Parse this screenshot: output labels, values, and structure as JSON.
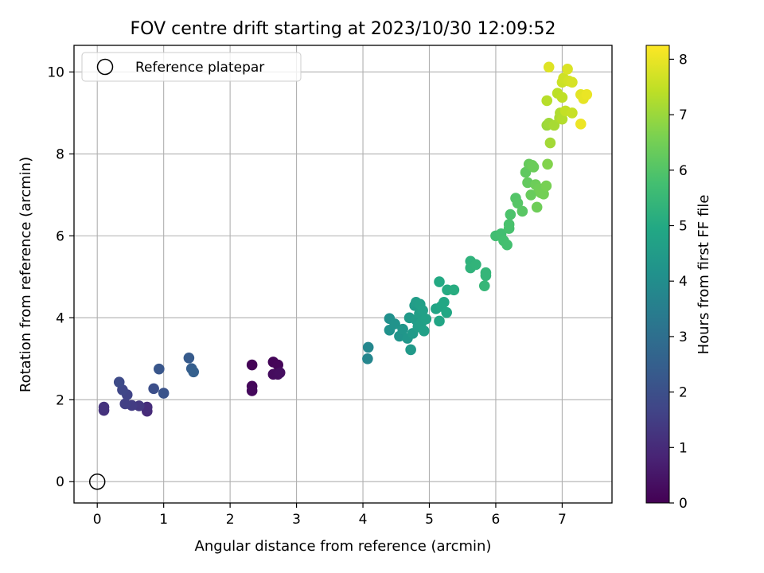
{
  "chart_data": {
    "type": "scatter",
    "title": "FOV centre drift starting at 2023/10/30 12:09:52",
    "xlabel": "Angular distance from reference (arcmin)",
    "ylabel": "Rotation from reference (arcmin)",
    "xlim": [
      -0.35,
      7.75
    ],
    "ylim": [
      -0.52,
      10.65
    ],
    "xticks": [
      "0",
      "1",
      "2",
      "3",
      "4",
      "5",
      "6",
      "7"
    ],
    "yticks": [
      "0",
      "2",
      "4",
      "6",
      "8",
      "10"
    ],
    "grid": true,
    "legend": {
      "position": "top-left",
      "entries": [
        "Reference platepar"
      ]
    },
    "reference_point": {
      "x": 0,
      "y": 0,
      "label": "Reference platepar"
    },
    "colorbar": {
      "label": "Hours from first FF file",
      "min": 0,
      "max": 8.25,
      "ticks": [
        "0",
        "1",
        "2",
        "3",
        "4",
        "5",
        "6",
        "7",
        "8"
      ],
      "colormap": "viridis"
    },
    "points": [
      {
        "x": 2.33,
        "y": 2.85,
        "t": 0.05
      },
      {
        "x": 2.65,
        "y": 2.92,
        "t": 0.1
      },
      {
        "x": 2.72,
        "y": 2.85,
        "t": 0.12
      },
      {
        "x": 2.33,
        "y": 2.33,
        "t": 0.15
      },
      {
        "x": 2.33,
        "y": 2.22,
        "t": 0.2
      },
      {
        "x": 2.65,
        "y": 2.62,
        "t": 0.25
      },
      {
        "x": 2.72,
        "y": 2.62,
        "t": 0.28
      },
      {
        "x": 2.75,
        "y": 2.66,
        "t": 0.3
      },
      {
        "x": 0.75,
        "y": 1.72,
        "t": 1.0
      },
      {
        "x": 0.75,
        "y": 1.82,
        "t": 1.05
      },
      {
        "x": 0.1,
        "y": 1.74,
        "t": 1.15
      },
      {
        "x": 0.1,
        "y": 1.82,
        "t": 1.2
      },
      {
        "x": 0.63,
        "y": 1.85,
        "t": 1.35
      },
      {
        "x": 0.52,
        "y": 1.86,
        "t": 1.45
      },
      {
        "x": 0.42,
        "y": 1.9,
        "t": 1.55
      },
      {
        "x": 0.45,
        "y": 2.12,
        "t": 1.65
      },
      {
        "x": 0.38,
        "y": 2.24,
        "t": 1.75
      },
      {
        "x": 0.33,
        "y": 2.43,
        "t": 1.85
      },
      {
        "x": 0.85,
        "y": 2.27,
        "t": 2.0
      },
      {
        "x": 1.0,
        "y": 2.16,
        "t": 2.1
      },
      {
        "x": 0.93,
        "y": 2.75,
        "t": 2.2
      },
      {
        "x": 1.38,
        "y": 3.02,
        "t": 2.35
      },
      {
        "x": 1.42,
        "y": 2.76,
        "t": 2.45
      },
      {
        "x": 1.45,
        "y": 2.68,
        "t": 2.5
      },
      {
        "x": 4.07,
        "y": 3.0,
        "t": 3.75
      },
      {
        "x": 4.08,
        "y": 3.28,
        "t": 3.8
      },
      {
        "x": 4.4,
        "y": 3.98,
        "t": 4.1
      },
      {
        "x": 4.4,
        "y": 3.7,
        "t": 4.15
      },
      {
        "x": 4.48,
        "y": 3.85,
        "t": 4.2
      },
      {
        "x": 4.55,
        "y": 3.55,
        "t": 4.25
      },
      {
        "x": 4.6,
        "y": 3.72,
        "t": 4.3
      },
      {
        "x": 4.67,
        "y": 3.5,
        "t": 4.35
      },
      {
        "x": 4.7,
        "y": 4.0,
        "t": 4.4
      },
      {
        "x": 4.72,
        "y": 3.22,
        "t": 4.42
      },
      {
        "x": 4.75,
        "y": 3.62,
        "t": 4.45
      },
      {
        "x": 4.78,
        "y": 4.3,
        "t": 4.5
      },
      {
        "x": 4.8,
        "y": 3.95,
        "t": 4.52
      },
      {
        "x": 4.8,
        "y": 4.38,
        "t": 4.55
      },
      {
        "x": 4.83,
        "y": 3.78,
        "t": 4.58
      },
      {
        "x": 4.85,
        "y": 4.1,
        "t": 4.6
      },
      {
        "x": 4.86,
        "y": 4.33,
        "t": 4.62
      },
      {
        "x": 4.88,
        "y": 3.88,
        "t": 4.64
      },
      {
        "x": 4.9,
        "y": 4.18,
        "t": 4.66
      },
      {
        "x": 4.92,
        "y": 3.68,
        "t": 4.68
      },
      {
        "x": 4.95,
        "y": 3.97,
        "t": 4.7
      },
      {
        "x": 5.1,
        "y": 4.22,
        "t": 4.8
      },
      {
        "x": 5.15,
        "y": 3.92,
        "t": 4.85
      },
      {
        "x": 5.18,
        "y": 4.28,
        "t": 4.88
      },
      {
        "x": 5.22,
        "y": 4.38,
        "t": 4.9
      },
      {
        "x": 5.26,
        "y": 4.13,
        "t": 4.92
      },
      {
        "x": 5.15,
        "y": 4.88,
        "t": 5.0
      },
      {
        "x": 5.27,
        "y": 4.68,
        "t": 5.05
      },
      {
        "x": 5.37,
        "y": 4.68,
        "t": 5.1
      },
      {
        "x": 5.62,
        "y": 5.38,
        "t": 5.3
      },
      {
        "x": 5.62,
        "y": 5.22,
        "t": 5.32
      },
      {
        "x": 5.7,
        "y": 5.3,
        "t": 5.35
      },
      {
        "x": 5.85,
        "y": 5.03,
        "t": 5.4
      },
      {
        "x": 5.85,
        "y": 5.1,
        "t": 5.42
      },
      {
        "x": 5.83,
        "y": 4.78,
        "t": 5.45
      },
      {
        "x": 6.0,
        "y": 6.0,
        "t": 5.7
      },
      {
        "x": 6.08,
        "y": 6.05,
        "t": 5.73
      },
      {
        "x": 6.12,
        "y": 5.88,
        "t": 5.76
      },
      {
        "x": 6.17,
        "y": 5.78,
        "t": 5.78
      },
      {
        "x": 6.2,
        "y": 6.18,
        "t": 5.82
      },
      {
        "x": 6.2,
        "y": 6.28,
        "t": 5.85
      },
      {
        "x": 6.22,
        "y": 6.52,
        "t": 5.9
      },
      {
        "x": 6.3,
        "y": 6.92,
        "t": 6.0
      },
      {
        "x": 6.33,
        "y": 6.8,
        "t": 6.05
      },
      {
        "x": 6.4,
        "y": 6.6,
        "t": 6.1
      },
      {
        "x": 6.45,
        "y": 7.55,
        "t": 6.2
      },
      {
        "x": 6.48,
        "y": 7.3,
        "t": 6.25
      },
      {
        "x": 6.5,
        "y": 7.75,
        "t": 6.3
      },
      {
        "x": 6.53,
        "y": 7.0,
        "t": 6.32
      },
      {
        "x": 6.55,
        "y": 7.72,
        "t": 6.35
      },
      {
        "x": 6.57,
        "y": 7.68,
        "t": 6.37
      },
      {
        "x": 6.6,
        "y": 7.25,
        "t": 6.4
      },
      {
        "x": 6.62,
        "y": 6.7,
        "t": 6.42
      },
      {
        "x": 6.65,
        "y": 7.15,
        "t": 6.45
      },
      {
        "x": 6.68,
        "y": 7.05,
        "t": 6.48
      },
      {
        "x": 6.72,
        "y": 7.02,
        "t": 6.5
      },
      {
        "x": 6.76,
        "y": 7.22,
        "t": 6.55
      },
      {
        "x": 6.78,
        "y": 7.75,
        "t": 6.7
      },
      {
        "x": 6.77,
        "y": 8.7,
        "t": 7.0
      },
      {
        "x": 6.8,
        "y": 8.75,
        "t": 7.05
      },
      {
        "x": 6.82,
        "y": 8.27,
        "t": 7.1
      },
      {
        "x": 6.88,
        "y": 8.7,
        "t": 7.15
      },
      {
        "x": 6.96,
        "y": 8.88,
        "t": 7.2
      },
      {
        "x": 6.97,
        "y": 9.0,
        "t": 7.25
      },
      {
        "x": 7.0,
        "y": 8.85,
        "t": 7.3
      },
      {
        "x": 6.77,
        "y": 9.3,
        "t": 7.35
      },
      {
        "x": 6.93,
        "y": 9.48,
        "t": 7.4
      },
      {
        "x": 7.0,
        "y": 9.38,
        "t": 7.45
      },
      {
        "x": 7.05,
        "y": 9.05,
        "t": 7.5
      },
      {
        "x": 7.15,
        "y": 9.0,
        "t": 7.55
      },
      {
        "x": 7.0,
        "y": 9.75,
        "t": 7.6
      },
      {
        "x": 7.02,
        "y": 9.85,
        "t": 7.65
      },
      {
        "x": 7.1,
        "y": 9.78,
        "t": 7.7
      },
      {
        "x": 7.15,
        "y": 9.75,
        "t": 7.75
      },
      {
        "x": 7.08,
        "y": 10.07,
        "t": 7.8
      },
      {
        "x": 6.8,
        "y": 10.12,
        "t": 7.85
      },
      {
        "x": 7.28,
        "y": 9.45,
        "t": 7.9
      },
      {
        "x": 7.32,
        "y": 9.35,
        "t": 7.95
      },
      {
        "x": 7.37,
        "y": 9.45,
        "t": 8.0
      },
      {
        "x": 7.28,
        "y": 8.73,
        "t": 8.05
      }
    ]
  }
}
